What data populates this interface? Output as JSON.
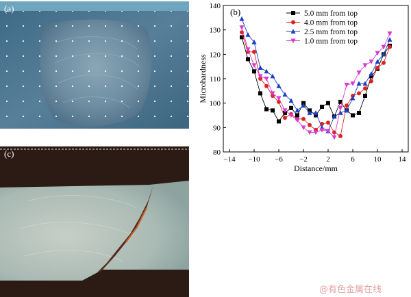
{
  "panels": {
    "a": {
      "label": "(a)"
    },
    "c": {
      "label": "(c)"
    }
  },
  "watermark": "@有色金属在线",
  "chart_data": {
    "type": "line",
    "label": "(b)",
    "xlabel": "Distance/mm",
    "ylabel": "Microhardness",
    "xlim": [
      -15,
      15
    ],
    "ylim": [
      80,
      140
    ],
    "xticks": [
      -14,
      -10,
      -6,
      -2,
      2,
      6,
      10,
      14
    ],
    "yticks": [
      80,
      90,
      100,
      110,
      120,
      130,
      140
    ],
    "legend_position": "top-right",
    "series": [
      {
        "name": "5.0 mm from top",
        "marker": "square",
        "color": "#000000",
        "x": [
          -12,
          -11,
          -10,
          -9,
          -8,
          -7,
          -6,
          -5,
          -4,
          -3,
          -2,
          -1,
          0,
          1,
          2,
          3,
          4,
          5,
          6,
          7,
          8,
          9,
          10,
          11,
          12
        ],
        "y": [
          127,
          118,
          113,
          104,
          97.5,
          97,
          92.5,
          96,
          98,
          95,
          100,
          97,
          95,
          98.5,
          100,
          94.5,
          100.5,
          97,
          95,
          96,
          103,
          111,
          114,
          120,
          123.5
        ]
      },
      {
        "name": "4.0 mm from top",
        "marker": "circle",
        "color": "#d9241f",
        "x": [
          -12,
          -11,
          -10,
          -9,
          -8,
          -7,
          -6,
          -5,
          -4,
          -3,
          -2,
          -1,
          0,
          1,
          2,
          3,
          4,
          5,
          6,
          7,
          8,
          9,
          10,
          11,
          12
        ],
        "y": [
          129,
          121,
          121,
          110,
          107,
          103,
          100.5,
          94,
          95.5,
          93.5,
          93.5,
          91,
          89,
          91.5,
          92,
          88,
          86.5,
          99,
          103,
          104,
          106,
          109,
          114.5,
          116.5,
          123
        ]
      },
      {
        "name": "2.5 mm from top",
        "marker": "triangle-up",
        "color": "#1a3fc7",
        "x": [
          -12,
          -11,
          -10,
          -9,
          -8,
          -7,
          -6,
          -5,
          -4,
          -3,
          -2,
          -1,
          0,
          1,
          2,
          3,
          4,
          5,
          6,
          7,
          8,
          9,
          10,
          11,
          12
        ],
        "y": [
          134.5,
          128,
          125,
          114.5,
          113,
          111,
          107,
          103.5,
          101,
          97,
          99,
          96,
          96,
          90,
          88.5,
          94.5,
          96,
          97,
          102,
          108,
          108,
          112,
          117,
          120,
          126
        ]
      },
      {
        "name": "1.0 mm from top",
        "marker": "triangle-down",
        "color": "#d83ad0",
        "x": [
          -12,
          -11,
          -10,
          -9,
          -8,
          -7,
          -6,
          -5,
          -4,
          -3,
          -2,
          -1,
          0,
          1,
          2,
          3,
          4,
          5,
          6,
          7,
          8,
          9,
          10,
          11,
          12
        ],
        "y": [
          131,
          122,
          115.5,
          111,
          110,
          104,
          102,
          97,
          95,
          93,
          90,
          88,
          88,
          89,
          88.5,
          86,
          98,
          107.5,
          108,
          112.5,
          115.5,
          117,
          120.5,
          123,
          128.5
        ]
      }
    ]
  }
}
